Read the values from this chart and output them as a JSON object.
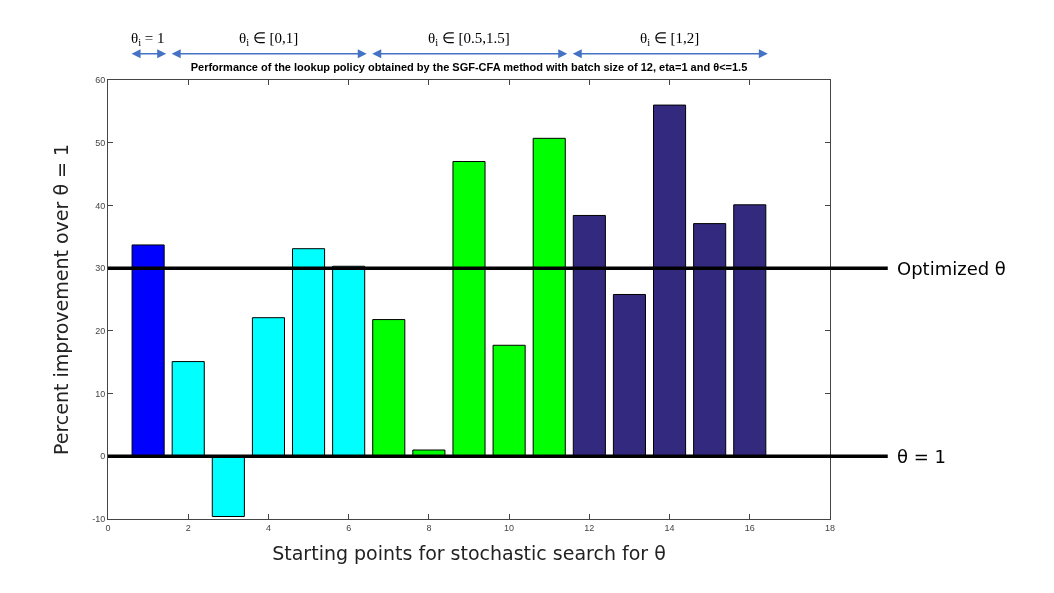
{
  "chart_data": {
    "type": "bar",
    "title": "Performance of the lookup policy obtained by the SGF-CFA method with batch size of 12, eta=1 and θ<=1.5",
    "xlabel": "Starting points for stochastic search for θ",
    "ylabel": "Percent improvement over θ = 1",
    "x": [
      1,
      2,
      3,
      4,
      5,
      6,
      7,
      8,
      9,
      10,
      11,
      12,
      13,
      14,
      15,
      16
    ],
    "values": [
      33.7,
      15.1,
      -9.6,
      22.1,
      33.1,
      30.3,
      21.8,
      1.0,
      47.0,
      17.7,
      50.7,
      38.4,
      25.8,
      56.0,
      37.1,
      40.1
    ],
    "colors": [
      "#0000ff",
      "#00ffff",
      "#00ffff",
      "#00ffff",
      "#00ffff",
      "#00ffff",
      "#00ff00",
      "#00ff00",
      "#00ff00",
      "#00ff00",
      "#00ff00",
      "#332a80",
      "#332a80",
      "#332a80",
      "#332a80",
      "#332a80"
    ],
    "xlim": [
      0,
      18
    ],
    "xticks": [
      0,
      2,
      4,
      6,
      8,
      10,
      12,
      14,
      16,
      18
    ],
    "ylim": [
      -10,
      60
    ],
    "yticks": [
      -10,
      0,
      10,
      20,
      30,
      40,
      50,
      60
    ],
    "ref_lines": [
      {
        "axis": "y",
        "value": 30,
        "label": "Optimized θ",
        "color": "#000000"
      },
      {
        "axis": "y",
        "value": 0,
        "color": "#000000"
      }
    ],
    "annotations": [
      "θ$_{i}$ = 1",
      "θ$_{i}$ ∈ [0,1]",
      "θ$_{i}$ ∈ [0.5,1.5]",
      "θ$_{i}$ ∈ [1,2]",
      "θ = 1"
    ]
  }
}
